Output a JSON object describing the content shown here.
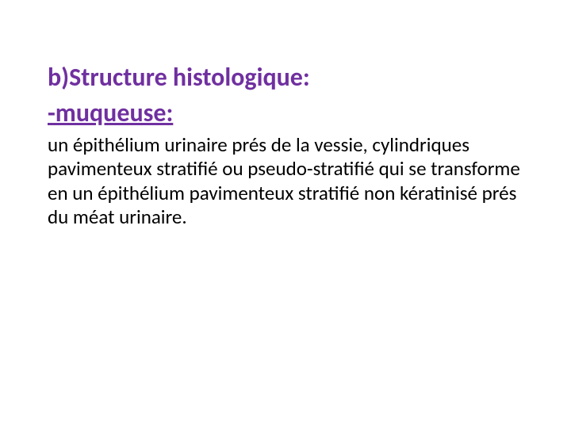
{
  "slide": {
    "heading": "b)Structure histologique:",
    "subheading": "-muqueuse:",
    "body": "un épithélium urinaire prés de la vessie, cylindriques pavimenteux stratifié ou pseudo-stratifié  qui se transforme  en un épithélium pavimenteux stratifié non kératinisé prés du méat urinaire.",
    "colors": {
      "heading_color": "#7030a0",
      "body_color": "#000000",
      "background_color": "#ffffff"
    },
    "typography": {
      "heading_fontsize": 32,
      "heading_weight": "bold",
      "body_fontsize": 25,
      "body_weight": "normal",
      "font_family": "Calibri"
    }
  }
}
